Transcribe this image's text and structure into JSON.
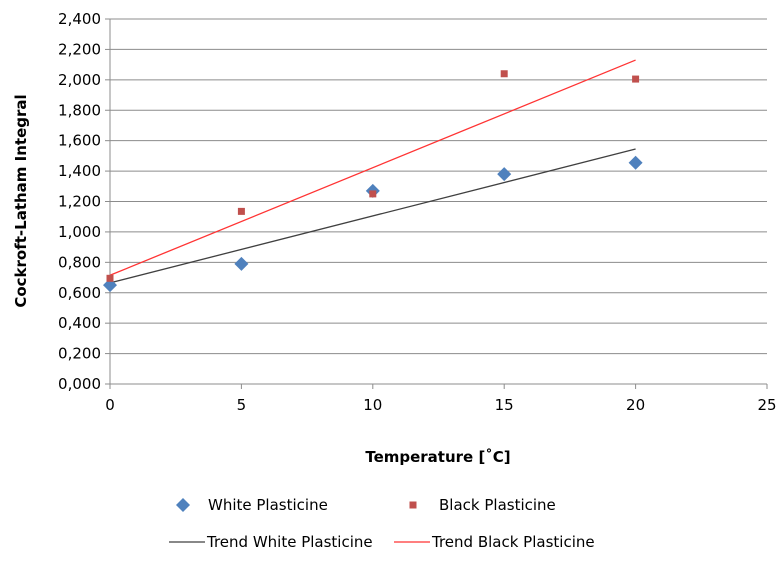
{
  "chart_data": {
    "type": "scatter",
    "title": "",
    "xlabel": "Temperature [˚C]",
    "ylabel": "Cockroft-Latham Integral",
    "xlim": [
      0,
      25
    ],
    "ylim": [
      0,
      2.4
    ],
    "x_ticks": [
      0,
      5,
      10,
      15,
      20,
      25
    ],
    "x_tick_labels": [
      "0",
      "5",
      "10",
      "15",
      "20",
      "25"
    ],
    "y_ticks": [
      0,
      0.2,
      0.4,
      0.6,
      0.8,
      1.0,
      1.2,
      1.4,
      1.6,
      1.8,
      2.0,
      2.2,
      2.4
    ],
    "y_tick_labels": [
      "0,000",
      "0,200",
      "0,400",
      "0,600",
      "0,800",
      "1,000",
      "1,200",
      "1,400",
      "1,600",
      "1,800",
      "2,000",
      "2,200",
      "2,400"
    ],
    "grid": {
      "horizontal": true,
      "vertical": false
    },
    "legend_position": "bottom",
    "series": [
      {
        "name": "White Plasticine",
        "kind": "points",
        "marker": "diamond",
        "color": "#4f81bd",
        "x": [
          0,
          5,
          10,
          15,
          20
        ],
        "y": [
          0.65,
          0.79,
          1.27,
          1.38,
          1.455
        ]
      },
      {
        "name": "Black Plasticine",
        "kind": "points",
        "marker": "square",
        "color": "#c0504d",
        "x": [
          0,
          5,
          10,
          15,
          20
        ],
        "y": [
          0.695,
          1.135,
          1.25,
          2.04,
          2.005
        ]
      },
      {
        "name": "Trend White Plasticine",
        "kind": "line",
        "color": "#404040",
        "x": [
          0,
          20
        ],
        "y": [
          0.665,
          1.545
        ]
      },
      {
        "name": "Trend Black Plasticine",
        "kind": "line",
        "color": "#ff3333",
        "x": [
          0,
          20
        ],
        "y": [
          0.715,
          2.13
        ]
      }
    ]
  }
}
